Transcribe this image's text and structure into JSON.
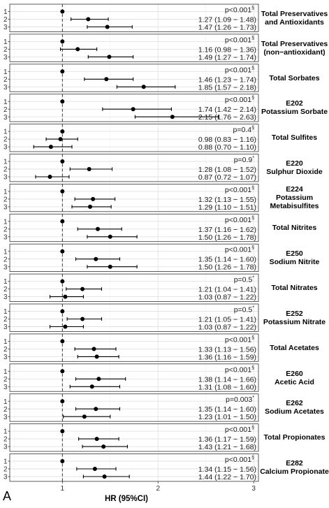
{
  "chart_data": {
    "type": "forest",
    "xlabel": "HR (95%CI)",
    "x_ticks": [
      1,
      2,
      3
    ],
    "xlim": [
      0.45,
      3.05
    ],
    "reference_line": 1,
    "panel_label": "A",
    "rows": [
      {
        "label": "Total Preservatives\nand Antioxidants",
        "p": "p<0.001",
        "p_sup": "§",
        "points": [
          {
            "level": "1",
            "hr": 1.0,
            "text": ""
          },
          {
            "level": "2",
            "hr": 1.27,
            "lo": 1.09,
            "hi": 1.48,
            "text": "1.27 (1.09 − 1.48)"
          },
          {
            "level": "3",
            "hr": 1.47,
            "lo": 1.26,
            "hi": 1.73,
            "text": "1.47 (1.26 − 1.73)"
          }
        ]
      },
      {
        "label": "Total Preservatives\n(non−antioxidant)",
        "p": "p<0.001",
        "p_sup": "§",
        "points": [
          {
            "level": "1",
            "hr": 1.0,
            "text": ""
          },
          {
            "level": "2",
            "hr": 1.16,
            "lo": 0.98,
            "hi": 1.36,
            "text": "1.16 (0.98 − 1.36)"
          },
          {
            "level": "3",
            "hr": 1.49,
            "lo": 1.27,
            "hi": 1.74,
            "text": "1.49 (1.27 − 1.74)"
          }
        ]
      },
      {
        "label": "Total Sorbates",
        "p": "p<0.001",
        "p_sup": "§",
        "points": [
          {
            "level": "1",
            "hr": 1.0,
            "text": ""
          },
          {
            "level": "2",
            "hr": 1.46,
            "lo": 1.23,
            "hi": 1.74,
            "text": "1.46 (1.23 − 1.74)"
          },
          {
            "level": "3",
            "hr": 1.85,
            "lo": 1.57,
            "hi": 2.18,
            "text": "1.85 (1.57 − 2.18)"
          }
        ]
      },
      {
        "label": "E202\nPotassium Sorbate",
        "p": "p<0.001",
        "p_sup": "§",
        "points": [
          {
            "level": "1",
            "hr": 1.0,
            "text": ""
          },
          {
            "level": "2",
            "hr": 1.74,
            "lo": 1.42,
            "hi": 2.14,
            "text": "1.74 (1.42 − 2.14)"
          },
          {
            "level": "3",
            "hr": 2.15,
            "lo": 1.76,
            "hi": 2.63,
            "text": "2.15 (1.76 − 2.63)"
          }
        ]
      },
      {
        "label": "Total Sulfites",
        "p": "p=0.4",
        "p_sup": "§",
        "points": [
          {
            "level": "1",
            "hr": 1.0,
            "text": ""
          },
          {
            "level": "2",
            "hr": 0.98,
            "lo": 0.83,
            "hi": 1.16,
            "text": "0.98 (0.83 − 1.16)"
          },
          {
            "level": "3",
            "hr": 0.88,
            "lo": 0.7,
            "hi": 1.1,
            "text": "0.88 (0.70 − 1.10)"
          }
        ]
      },
      {
        "label": "E220\nSulphur Dioxide",
        "p": "p=0.9",
        "p_sup": "*",
        "points": [
          {
            "level": "1",
            "hr": 1.0,
            "text": ""
          },
          {
            "level": "2",
            "hr": 1.28,
            "lo": 1.08,
            "hi": 1.52,
            "text": "1.28 (1.08 − 1.52)"
          },
          {
            "level": "3",
            "hr": 0.87,
            "lo": 0.72,
            "hi": 1.07,
            "text": "0.87 (0.72 − 1.07)"
          }
        ]
      },
      {
        "label": "E224\nPotassium\nMetabisulfites",
        "p": "p<0.001",
        "p_sup": "§",
        "points": [
          {
            "level": "1",
            "hr": 1.0,
            "text": ""
          },
          {
            "level": "2",
            "hr": 1.32,
            "lo": 1.13,
            "hi": 1.55,
            "text": "1.32 (1.13 − 1.55)"
          },
          {
            "level": "3",
            "hr": 1.29,
            "lo": 1.1,
            "hi": 1.51,
            "text": "1.29 (1.10 − 1.51)"
          }
        ]
      },
      {
        "label": "Total Nitrites",
        "p": "p<0.001",
        "p_sup": "§",
        "points": [
          {
            "level": "1",
            "hr": 1.0,
            "text": ""
          },
          {
            "level": "2",
            "hr": 1.37,
            "lo": 1.16,
            "hi": 1.62,
            "text": "1.37 (1.16 − 1.62)"
          },
          {
            "level": "3",
            "hr": 1.5,
            "lo": 1.26,
            "hi": 1.78,
            "text": "1.50 (1.26 − 1.78)"
          }
        ]
      },
      {
        "label": "E250\nSodium Nitrite",
        "p": "p<0.001",
        "p_sup": "§",
        "points": [
          {
            "level": "1",
            "hr": 1.0,
            "text": ""
          },
          {
            "level": "2",
            "hr": 1.35,
            "lo": 1.14,
            "hi": 1.6,
            "text": "1.35 (1.14 − 1.60)"
          },
          {
            "level": "3",
            "hr": 1.5,
            "lo": 1.26,
            "hi": 1.78,
            "text": "1.50 (1.26 − 1.78)"
          }
        ]
      },
      {
        "label": "Total Nitrates",
        "p": "p=0.5",
        "p_sup": "*",
        "points": [
          {
            "level": "1",
            "hr": 1.0,
            "text": ""
          },
          {
            "level": "2",
            "hr": 1.21,
            "lo": 1.04,
            "hi": 1.41,
            "text": "1.21 (1.04 − 1.41)"
          },
          {
            "level": "3",
            "hr": 1.03,
            "lo": 0.87,
            "hi": 1.22,
            "text": "1.03 (0.87 − 1.22)"
          }
        ]
      },
      {
        "label": "E252\nPotassium Nitrate",
        "p": "p=0.5",
        "p_sup": "*",
        "points": [
          {
            "level": "1",
            "hr": 1.0,
            "text": ""
          },
          {
            "level": "2",
            "hr": 1.21,
            "lo": 1.05,
            "hi": 1.41,
            "text": "1.21 (1.05 − 1.41)"
          },
          {
            "level": "3",
            "hr": 1.03,
            "lo": 0.87,
            "hi": 1.22,
            "text": "1.03 (0.87 − 1.22)"
          }
        ]
      },
      {
        "label": "Total Acetates",
        "p": "p<0.001",
        "p_sup": "§",
        "points": [
          {
            "level": "1",
            "hr": 1.0,
            "text": ""
          },
          {
            "level": "2",
            "hr": 1.33,
            "lo": 1.13,
            "hi": 1.56,
            "text": "1.33 (1.13 − 1.56)"
          },
          {
            "level": "3",
            "hr": 1.36,
            "lo": 1.16,
            "hi": 1.59,
            "text": "1.36 (1.16 − 1.59)"
          }
        ]
      },
      {
        "label": "E260\nAcetic Acid",
        "p": "p<0.001",
        "p_sup": "§",
        "points": [
          {
            "level": "1",
            "hr": 1.0,
            "text": ""
          },
          {
            "level": "2",
            "hr": 1.38,
            "lo": 1.14,
            "hi": 1.66,
            "text": "1.38 (1.14 − 1.66)"
          },
          {
            "level": "3",
            "hr": 1.31,
            "lo": 1.08,
            "hi": 1.6,
            "text": "1.31 (1.08 − 1.60)"
          }
        ]
      },
      {
        "label": "E262\nSodium Acetates",
        "p": "p=0.003",
        "p_sup": "*",
        "points": [
          {
            "level": "1",
            "hr": 1.0,
            "text": ""
          },
          {
            "level": "2",
            "hr": 1.35,
            "lo": 1.14,
            "hi": 1.6,
            "text": "1.35 (1.14 − 1.60)"
          },
          {
            "level": "3",
            "hr": 1.23,
            "lo": 1.01,
            "hi": 1.5,
            "text": "1.23 (1.01 − 1.50)"
          }
        ]
      },
      {
        "label": "Total Propionates",
        "p": "p<0.001",
        "p_sup": "§",
        "points": [
          {
            "level": "1",
            "hr": 1.0,
            "text": ""
          },
          {
            "level": "2",
            "hr": 1.36,
            "lo": 1.17,
            "hi": 1.59,
            "text": "1.36 (1.17 − 1.59)"
          },
          {
            "level": "3",
            "hr": 1.43,
            "lo": 1.21,
            "hi": 1.68,
            "text": "1.43 (1.21 − 1.68)"
          }
        ]
      },
      {
        "label": "E282\nCalcium Propionate",
        "p": "p<0.001",
        "p_sup": "§",
        "points": [
          {
            "level": "1",
            "hr": 1.0,
            "text": ""
          },
          {
            "level": "2",
            "hr": 1.34,
            "lo": 1.15,
            "hi": 1.56,
            "text": "1.34 (1.15 − 1.56)"
          },
          {
            "level": "3",
            "hr": 1.44,
            "lo": 1.22,
            "hi": 1.7,
            "text": "1.44 (1.22 − 1.70)"
          }
        ]
      }
    ]
  }
}
